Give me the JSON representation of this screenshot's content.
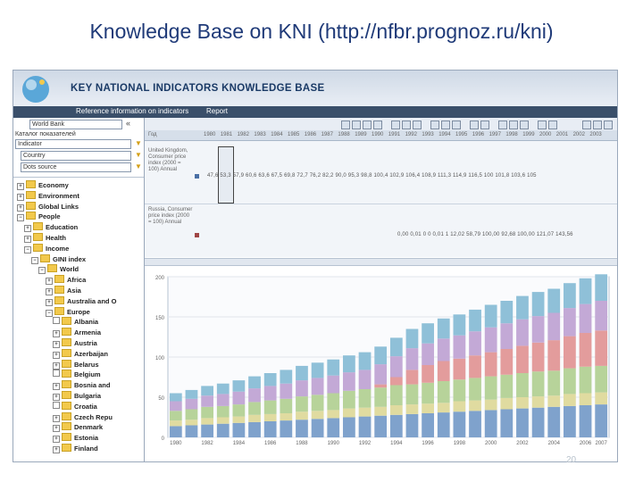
{
  "slide": {
    "title": "Knowledge Base on KNI (http://nfbr.prognoz.ru/kni)",
    "page_number": "20"
  },
  "app": {
    "title": "KEY NATIONAL INDICATORS KNOWLEDGE BASE"
  },
  "menu": {
    "items": [
      "Reference information on indicators",
      "Report"
    ]
  },
  "sidebar": {
    "database_select": "World Bank",
    "catalog_label": "Каталог показателей",
    "indicator_select": "Indicator",
    "country_select": "Country",
    "period_select": "Dots source",
    "tree": [
      {
        "label": "Economy",
        "level": 0,
        "toggle": "+"
      },
      {
        "label": "Environment",
        "level": 0,
        "toggle": "+"
      },
      {
        "label": "Global Links",
        "level": 0,
        "toggle": "+"
      },
      {
        "label": "People",
        "level": 0,
        "toggle": "-"
      },
      {
        "label": "Education",
        "level": 1,
        "toggle": "+"
      },
      {
        "label": "Health",
        "level": 1,
        "toggle": "+"
      },
      {
        "label": "Income",
        "level": 1,
        "toggle": "-"
      },
      {
        "label": "GINI index",
        "level": 2,
        "toggle": "-"
      },
      {
        "label": "World",
        "level": 3,
        "toggle": "-"
      },
      {
        "label": "Africa",
        "level": 4,
        "toggle": "+"
      },
      {
        "label": "Asia",
        "level": 4,
        "toggle": "+"
      },
      {
        "label": "Australia and O",
        "level": 4,
        "toggle": "+"
      },
      {
        "label": "Europe",
        "level": 4,
        "toggle": "-"
      },
      {
        "label": "Albania",
        "level": 5,
        "toggle": ""
      },
      {
        "label": "Armenia",
        "level": 5,
        "toggle": "+"
      },
      {
        "label": "Austria",
        "level": 5,
        "toggle": "+"
      },
      {
        "label": "Azerbaijan",
        "level": 5,
        "toggle": "+"
      },
      {
        "label": "Belarus",
        "level": 5,
        "toggle": "+"
      },
      {
        "label": "Belgium",
        "level": 5,
        "toggle": ""
      },
      {
        "label": "Bosnia and",
        "level": 5,
        "toggle": "+"
      },
      {
        "label": "Bulgaria",
        "level": 5,
        "toggle": "+"
      },
      {
        "label": "Croatia",
        "level": 5,
        "toggle": ""
      },
      {
        "label": "Czech Repu",
        "level": 5,
        "toggle": "+"
      },
      {
        "label": "Denmark",
        "level": 5,
        "toggle": "+"
      },
      {
        "label": "Estonia",
        "level": 5,
        "toggle": "+"
      },
      {
        "label": "Finland",
        "level": 5,
        "toggle": "+"
      }
    ]
  },
  "grid": {
    "corner_label": "Год",
    "years": [
      "1980",
      "1981",
      "1982",
      "1983",
      "1984",
      "1985",
      "1986",
      "1987",
      "1988",
      "1989",
      "1990",
      "1991",
      "1992",
      "1993",
      "1994",
      "1995",
      "1996",
      "1997",
      "1998",
      "1999",
      "2000",
      "2001",
      "2002",
      "2003"
    ],
    "rows": [
      {
        "label": "United Kingdom, Consumer price index (2000 = 100) Annual",
        "values": "47,6  53,3  57,9  60,6  63,6  67,5  69,8  72,7  76,2  82,2  90,0  95,3  98,8  100,4  102,9  106,4  108,9  111,3  114,9  116,5  100  101,8  103,6  105"
      },
      {
        "label": "Russia, Consumer price index (2000 = 100) Annual",
        "values": "0,00  0,01  0  0  0,01  1  12,02  58,79  100,00  92,68  100,00  121,07  143,56"
      }
    ]
  },
  "colors": {
    "s1": "#7fa2cc",
    "s2": "#e0dba0",
    "s3": "#b7d39a",
    "s4": "#e39c9c",
    "s5": "#c3a9d6",
    "s6": "#8fc0d8",
    "accent": "#1f3a78"
  },
  "chart_data": {
    "type": "bar",
    "stacked": true,
    "title": "",
    "xlabel": "",
    "ylabel": "",
    "ylim": [
      0,
      200
    ],
    "yticks": [
      "0",
      "50",
      "100",
      "150",
      "200"
    ],
    "grid": true,
    "categories": [
      "1980",
      "1981",
      "1982",
      "1983",
      "1984",
      "1985",
      "1986",
      "1987",
      "1988",
      "1989",
      "1990",
      "1991",
      "1992",
      "1993",
      "1994",
      "1995",
      "1996",
      "1997",
      "1998",
      "1999",
      "2000",
      "2001",
      "2002",
      "2003",
      "2004",
      "2005",
      "2006",
      "2007"
    ],
    "x_tick_labels": [
      "1980",
      "1982",
      "1984",
      "1986",
      "1988",
      "1990",
      "1992",
      "1994",
      "1996",
      "1998",
      "2000",
      "2002",
      "2004",
      "2006",
      "2007"
    ],
    "series": [
      {
        "values": [
          14,
          15,
          16,
          17,
          18,
          19,
          20,
          21,
          22,
          23,
          24,
          25,
          26,
          27,
          28,
          29,
          30,
          31,
          32,
          33,
          34,
          35,
          36,
          37,
          38,
          39,
          40,
          41
        ]
      },
      {
        "values": [
          7,
          7,
          8,
          8,
          8,
          9,
          9,
          9,
          10,
          10,
          10,
          11,
          11,
          11,
          12,
          12,
          12,
          12,
          13,
          13,
          13,
          14,
          14,
          14,
          14,
          15,
          15,
          15
        ]
      },
      {
        "values": [
          12,
          13,
          14,
          14,
          15,
          16,
          17,
          18,
          19,
          20,
          21,
          22,
          23,
          24,
          25,
          25,
          26,
          27,
          27,
          28,
          29,
          29,
          30,
          31,
          31,
          32,
          33,
          33
        ]
      },
      {
        "values": [
          0,
          0,
          0,
          0,
          0,
          0,
          0,
          0,
          0,
          0,
          0,
          0,
          0,
          4,
          10,
          18,
          22,
          25,
          26,
          28,
          30,
          32,
          34,
          36,
          38,
          40,
          42,
          44
        ]
      },
      {
        "values": [
          12,
          13,
          14,
          15,
          16,
          17,
          18,
          19,
          20,
          21,
          22,
          23,
          24,
          25,
          26,
          27,
          27,
          28,
          29,
          30,
          31,
          32,
          33,
          33,
          34,
          35,
          36,
          37
        ]
      },
      {
        "values": [
          10,
          11,
          12,
          13,
          14,
          15,
          16,
          17,
          18,
          19,
          20,
          21,
          22,
          22,
          23,
          24,
          25,
          25,
          26,
          27,
          28,
          28,
          29,
          30,
          30,
          31,
          32,
          33
        ]
      }
    ]
  }
}
